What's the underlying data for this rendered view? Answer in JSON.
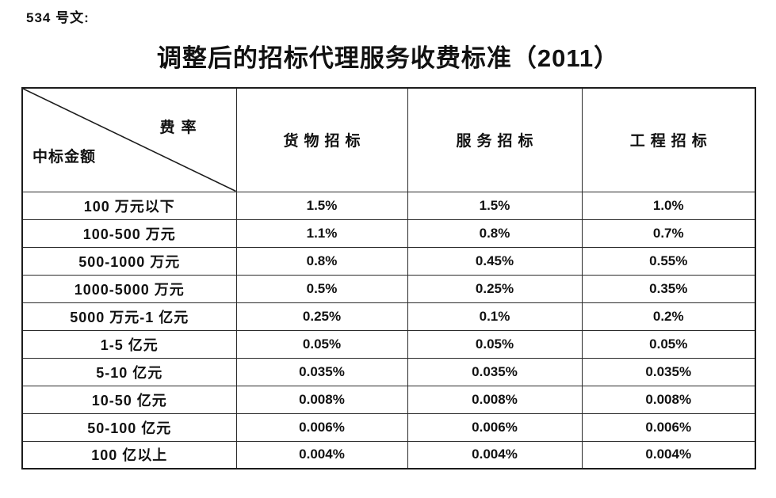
{
  "doc_label": "534 号文:",
  "title": "调整后的招标代理服务收费标准（2011）",
  "colors": {
    "background": "#ffffff",
    "text": "#111111",
    "border": "#1c1c1c"
  },
  "table": {
    "corner": {
      "rate_label": "费率",
      "amount_label": "中标金额"
    },
    "columns": [
      "货物招标",
      "服务招标",
      "工程招标"
    ],
    "rows": [
      {
        "label": "100 万元以下",
        "values": [
          "1.5%",
          "1.5%",
          "1.0%"
        ]
      },
      {
        "label": "100-500 万元",
        "values": [
          "1.1%",
          "0.8%",
          "0.7%"
        ]
      },
      {
        "label": "500-1000 万元",
        "values": [
          "0.8%",
          "0.45%",
          "0.55%"
        ]
      },
      {
        "label": "1000-5000 万元",
        "values": [
          "0.5%",
          "0.25%",
          "0.35%"
        ]
      },
      {
        "label": "5000 万元-1 亿元",
        "values": [
          "0.25%",
          "0.1%",
          "0.2%"
        ]
      },
      {
        "label": "1-5 亿元",
        "values": [
          "0.05%",
          "0.05%",
          "0.05%"
        ]
      },
      {
        "label": "5-10 亿元",
        "values": [
          "0.035%",
          "0.035%",
          "0.035%"
        ]
      },
      {
        "label": "10-50 亿元",
        "values": [
          "0.008%",
          "0.008%",
          "0.008%"
        ]
      },
      {
        "label": "50-100 亿元",
        "values": [
          "0.006%",
          "0.006%",
          "0.006%"
        ]
      },
      {
        "label": "100 亿以上",
        "values": [
          "0.004%",
          "0.004%",
          "0.004%"
        ]
      }
    ]
  }
}
